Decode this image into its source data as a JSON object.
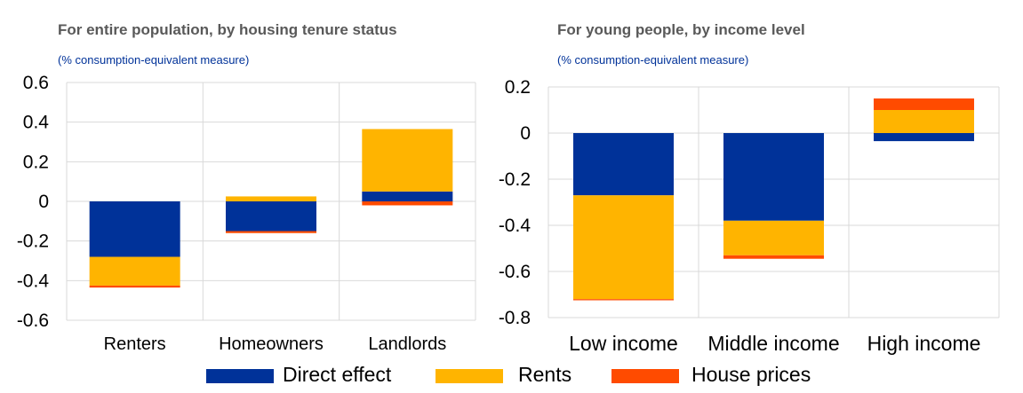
{
  "colors": {
    "direct": "#003299",
    "rents": "#FFB400",
    "house": "#FF4B00",
    "grid": "#d9d9d9"
  },
  "chart_data": [
    {
      "type": "bar",
      "stacked": true,
      "title": "For entire population, by housing tenure status",
      "subtitle": "(% consumption-equivalent measure)",
      "categories": [
        "Renters",
        "Homeowners",
        "Landlords"
      ],
      "ylim": [
        -0.6,
        0.6
      ],
      "yticks": [
        "0.6",
        "0.4",
        "0.2",
        "0",
        "-0.2",
        "-0.4",
        "-0.6"
      ],
      "series": [
        {
          "name": "Direct effect",
          "values": [
            -0.28,
            -0.15,
            0.05
          ]
        },
        {
          "name": "Rents",
          "values": [
            -0.145,
            0.025,
            0.315
          ]
        },
        {
          "name": "House prices",
          "values": [
            -0.01,
            -0.01,
            -0.02
          ]
        }
      ]
    },
    {
      "type": "bar",
      "stacked": true,
      "title": "For young people, by income level",
      "subtitle": "(% consumption-equivalent measure)",
      "categories": [
        "Low income",
        "Middle income",
        "High income"
      ],
      "ylim": [
        -0.8,
        0.2
      ],
      "yticks": [
        "0.2",
        "0",
        "-0.2",
        "-0.4",
        "-0.6",
        "-0.8"
      ],
      "series": [
        {
          "name": "Direct effect",
          "values": [
            -0.27,
            -0.38,
            -0.035
          ]
        },
        {
          "name": "Rents",
          "values": [
            -0.45,
            -0.15,
            0.1
          ]
        },
        {
          "name": "House prices",
          "values": [
            -0.005,
            -0.015,
            0.05
          ]
        }
      ]
    }
  ],
  "legend": [
    "Direct effect",
    "Rents",
    "House prices"
  ]
}
